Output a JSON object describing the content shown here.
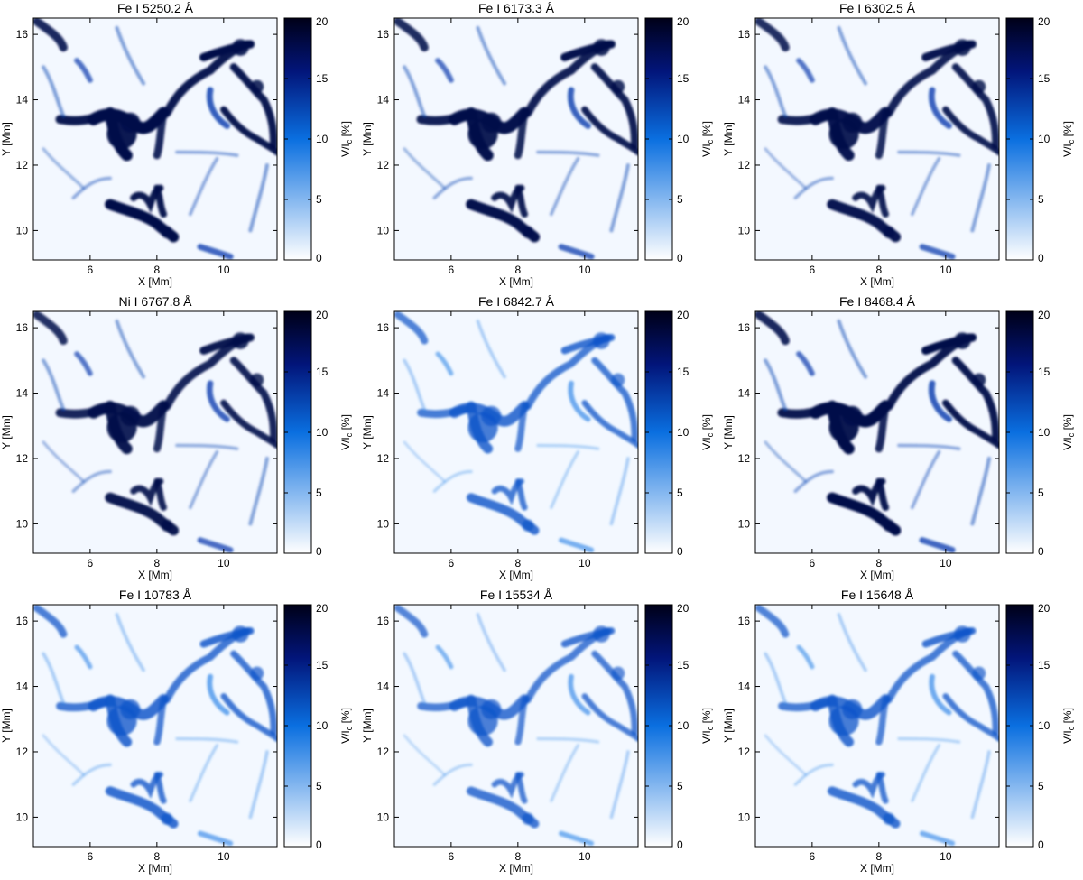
{
  "chart_data": [
    {
      "type": "heatmap",
      "title": "Fe I 5250.2 Å",
      "xlabel": "X [Mm]",
      "ylabel": "Y [Mm]",
      "xticks": [
        "6",
        "8",
        "10"
      ],
      "yticks": [
        "10",
        "12",
        "14",
        "16"
      ],
      "xlim": [
        4.3,
        11.6
      ],
      "ylim": [
        9.1,
        16.5
      ],
      "colorbar": {
        "label": "V/I",
        "label_sub": "c",
        "label_unit": " [%]",
        "ticks": [
          "0",
          "5",
          "10",
          "15",
          "20"
        ],
        "range": [
          0,
          20
        ],
        "cmap": "white-to-blue-to-black"
      },
      "intensity": 1.0
    },
    {
      "type": "heatmap",
      "title": "Fe I 6173.3 Å",
      "xlabel": "X [Mm]",
      "ylabel": "Y [Mm]",
      "xticks": [
        "6",
        "8",
        "10"
      ],
      "yticks": [
        "10",
        "12",
        "14",
        "16"
      ],
      "xlim": [
        4.3,
        11.6
      ],
      "ylim": [
        9.1,
        16.5
      ],
      "colorbar": {
        "label": "V/I",
        "label_sub": "c",
        "label_unit": " [%]",
        "ticks": [
          "0",
          "5",
          "10",
          "15",
          "20"
        ],
        "range": [
          0,
          20
        ],
        "cmap": "white-to-blue-to-black"
      },
      "intensity": 0.95
    },
    {
      "type": "heatmap",
      "title": "Fe I 6302.5 Å",
      "xlabel": "X [Mm]",
      "ylabel": "Y [Mm]",
      "xticks": [
        "6",
        "8",
        "10"
      ],
      "yticks": [
        "10",
        "12",
        "14",
        "16"
      ],
      "xlim": [
        4.3,
        11.6
      ],
      "ylim": [
        9.1,
        16.5
      ],
      "colorbar": {
        "label": "V/I",
        "label_sub": "c",
        "label_unit": " [%]",
        "ticks": [
          "0",
          "5",
          "10",
          "15",
          "20"
        ],
        "range": [
          0,
          20
        ],
        "cmap": "white-to-blue-to-black"
      },
      "intensity": 0.92
    },
    {
      "type": "heatmap",
      "title": "Ni I 6767.8 Å",
      "xlabel": "X [Mm]",
      "ylabel": "Y [Mm]",
      "xticks": [
        "6",
        "8",
        "10"
      ],
      "yticks": [
        "10",
        "12",
        "14",
        "16"
      ],
      "xlim": [
        4.3,
        11.6
      ],
      "ylim": [
        9.1,
        16.5
      ],
      "colorbar": {
        "label": "V/I",
        "label_sub": "c",
        "label_unit": " [%]",
        "ticks": [
          "0",
          "5",
          "10",
          "15",
          "20"
        ],
        "range": [
          0,
          20
        ],
        "cmap": "white-to-blue-to-black"
      },
      "intensity": 0.9
    },
    {
      "type": "heatmap",
      "title": "Fe I 6842.7 Å",
      "xlabel": "X [Mm]",
      "ylabel": "Y [Mm]",
      "xticks": [
        "6",
        "8",
        "10"
      ],
      "yticks": [
        "10",
        "12",
        "14",
        "16"
      ],
      "xlim": [
        4.3,
        11.6
      ],
      "ylim": [
        9.1,
        16.5
      ],
      "colorbar": {
        "label": "V/I",
        "label_sub": "c",
        "label_unit": " [%]",
        "ticks": [
          "0",
          "5",
          "10",
          "15",
          "20"
        ],
        "range": [
          0,
          20
        ],
        "cmap": "white-to-blue-to-black"
      },
      "intensity": 0.55
    },
    {
      "type": "heatmap",
      "title": "Fe I 8468.4 Å",
      "xlabel": "X [Mm]",
      "ylabel": "Y [Mm]",
      "xticks": [
        "6",
        "8",
        "10"
      ],
      "yticks": [
        "10",
        "12",
        "14",
        "16"
      ],
      "xlim": [
        4.3,
        11.6
      ],
      "ylim": [
        9.1,
        16.5
      ],
      "colorbar": {
        "label": "V/I",
        "label_sub": "c",
        "label_unit": " [%]",
        "ticks": [
          "0",
          "5",
          "10",
          "15",
          "20"
        ],
        "range": [
          0,
          20
        ],
        "cmap": "white-to-blue-to-black"
      },
      "intensity": 1.0
    },
    {
      "type": "heatmap",
      "title": "Fe I 10783 Å",
      "xlabel": "X [Mm]",
      "ylabel": "Y [Mm]",
      "xticks": [
        "6",
        "8",
        "10"
      ],
      "yticks": [
        "10",
        "12",
        "14",
        "16"
      ],
      "xlim": [
        4.3,
        11.6
      ],
      "ylim": [
        9.1,
        16.5
      ],
      "colorbar": {
        "label": "V/I",
        "label_sub": "c",
        "label_unit": " [%]",
        "ticks": [
          "0",
          "5",
          "10",
          "15",
          "20"
        ],
        "range": [
          0,
          20
        ],
        "cmap": "white-to-blue-to-black"
      },
      "intensity": 0.6
    },
    {
      "type": "heatmap",
      "title": "Fe I 15534 Å",
      "xlabel": "X [Mm]",
      "ylabel": "Y [Mm]",
      "xticks": [
        "6",
        "8",
        "10"
      ],
      "yticks": [
        "10",
        "12",
        "14",
        "16"
      ],
      "xlim": [
        4.3,
        11.6
      ],
      "ylim": [
        9.1,
        16.5
      ],
      "colorbar": {
        "label": "V/I",
        "label_sub": "c",
        "label_unit": " [%]",
        "ticks": [
          "0",
          "5",
          "10",
          "15",
          "20"
        ],
        "range": [
          0,
          20
        ],
        "cmap": "white-to-blue-to-black"
      },
      "intensity": 0.5
    },
    {
      "type": "heatmap",
      "title": "Fe I 15648 Å",
      "xlabel": "X [Mm]",
      "ylabel": "Y [Mm]",
      "xticks": [
        "6",
        "8",
        "10"
      ],
      "yticks": [
        "10",
        "12",
        "14",
        "16"
      ],
      "xlim": [
        4.3,
        11.6
      ],
      "ylim": [
        9.1,
        16.5
      ],
      "colorbar": {
        "label": "V/I",
        "label_sub": "c",
        "label_unit": " [%]",
        "ticks": [
          "0",
          "5",
          "10",
          "15",
          "20"
        ],
        "range": [
          0,
          20
        ],
        "cmap": "white-to-blue-to-black"
      },
      "intensity": 0.55
    }
  ],
  "colors": {
    "cmap_low": "#ffffff",
    "cmap_mid": "#0a6fe0",
    "cmap_high": "#000018",
    "frame": "#000000"
  }
}
